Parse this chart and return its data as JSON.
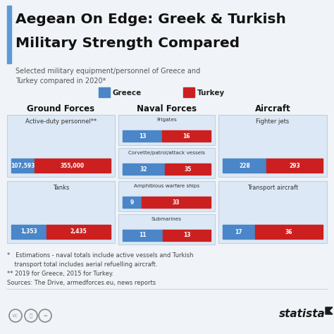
{
  "title_line1": "Aegean On Edge: Greek & Turkish",
  "title_line2": "Military Strength Compared",
  "subtitle": "Selected military equipment/personnel of Greece and\nTurkey compared in 2020*",
  "bg_color": "#f0f4f8",
  "title_color": "#111111",
  "greece_color": "#4a86c8",
  "turkey_color": "#cc2020",
  "box_bg": "#dce8f5",
  "box_border": "#c0d0e0",
  "accent_bar_color": "#5b9bd5",
  "legend_greece": "Greece",
  "legend_turkey": "Turkey",
  "ground_title": "Ground Forces",
  "naval_title": "Naval Forces",
  "aircraft_title": "Aircraft",
  "ground_items": [
    {
      "label": "Active-duty personnel**",
      "greece": 107593,
      "turkey": 355000,
      "greece_label": "107,593",
      "turkey_label": "355,000"
    },
    {
      "label": "Tanks",
      "greece": 1353,
      "turkey": 2435,
      "greece_label": "1,353",
      "turkey_label": "2,435"
    }
  ],
  "naval_items": [
    {
      "label": "Frigates",
      "greece": 13,
      "turkey": 16,
      "greece_label": "13",
      "turkey_label": "16"
    },
    {
      "label": "Corvette/patrol/attack vessels",
      "greece": 32,
      "turkey": 35,
      "greece_label": "32",
      "turkey_label": "35"
    },
    {
      "label": "Amphibious warfare ships",
      "greece": 9,
      "turkey": 33,
      "greece_label": "9",
      "turkey_label": "33"
    },
    {
      "label": "Submarines",
      "greece": 11,
      "turkey": 13,
      "greece_label": "11",
      "turkey_label": "13"
    }
  ],
  "aircraft_items": [
    {
      "label": "Fighter jets",
      "greece": 228,
      "turkey": 293,
      "greece_label": "228",
      "turkey_label": "293"
    },
    {
      "label": "Transport aircraft",
      "greece": 17,
      "turkey": 36,
      "greece_label": "17",
      "turkey_label": "36"
    }
  ],
  "footnote1": "*   Estimations - naval totals include active vessels and Turkish",
  "footnote2": "    transport total includes aerial refuelling aircraft.",
  "footnote3": "** 2019 for Greece, 2015 for Turkey.",
  "footnote4": "Sources: The Drive, armedforces.eu, news reports",
  "statista_text": "statista"
}
